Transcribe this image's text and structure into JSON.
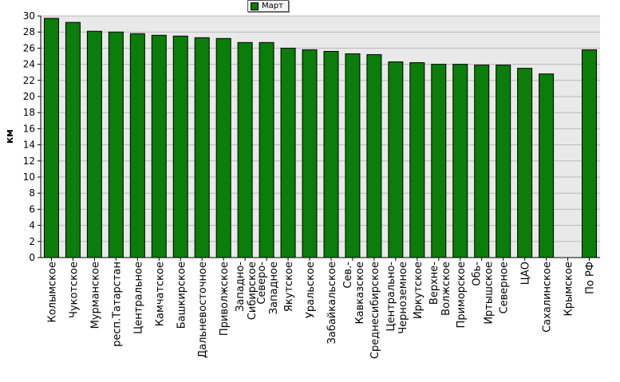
{
  "legend": {
    "label": "Март"
  },
  "colors": {
    "bar": "#0a7d0a",
    "plot_bg": "#e9e9e9",
    "grid": "#b9b9b9",
    "axis": "#000000"
  },
  "chart_data": {
    "type": "bar",
    "title": "",
    "xlabel": "",
    "ylabel": "км",
    "ylim": [
      0,
      30
    ],
    "yticks": [
      0,
      2,
      4,
      6,
      8,
      10,
      12,
      14,
      16,
      18,
      20,
      22,
      24,
      26,
      28,
      30
    ],
    "grid": true,
    "legend_position": "top-center",
    "categories": [
      "Колымское",
      "Чукотское",
      "Мурманское",
      "респ.Татарстан",
      "Центральное",
      "Камчатское",
      "Башкирское",
      "Дальневосточное",
      "Приволжское",
      "Западно-\nСибирское",
      "Северо-\nЗападное",
      "Якутское",
      "Уральское",
      "Забайкальское",
      "Сев.-\nКавказское",
      "Среднесибирское",
      "Центрально-\nЧерноземное",
      "Иркутское",
      "Верхне-\nВолжское",
      "Приморское",
      "Обь-\nИртышское",
      "Северное",
      "ЦАО",
      "Сахалинское",
      "Крымское",
      "По РФ"
    ],
    "series": [
      {
        "name": "Март",
        "values": [
          29.7,
          29.2,
          28.1,
          28.0,
          27.8,
          27.6,
          27.5,
          27.3,
          27.2,
          26.7,
          26.7,
          26.0,
          25.8,
          25.6,
          25.3,
          25.2,
          24.3,
          24.2,
          24.0,
          24.0,
          23.9,
          23.9,
          23.5,
          22.8,
          null,
          25.8
        ]
      }
    ]
  }
}
